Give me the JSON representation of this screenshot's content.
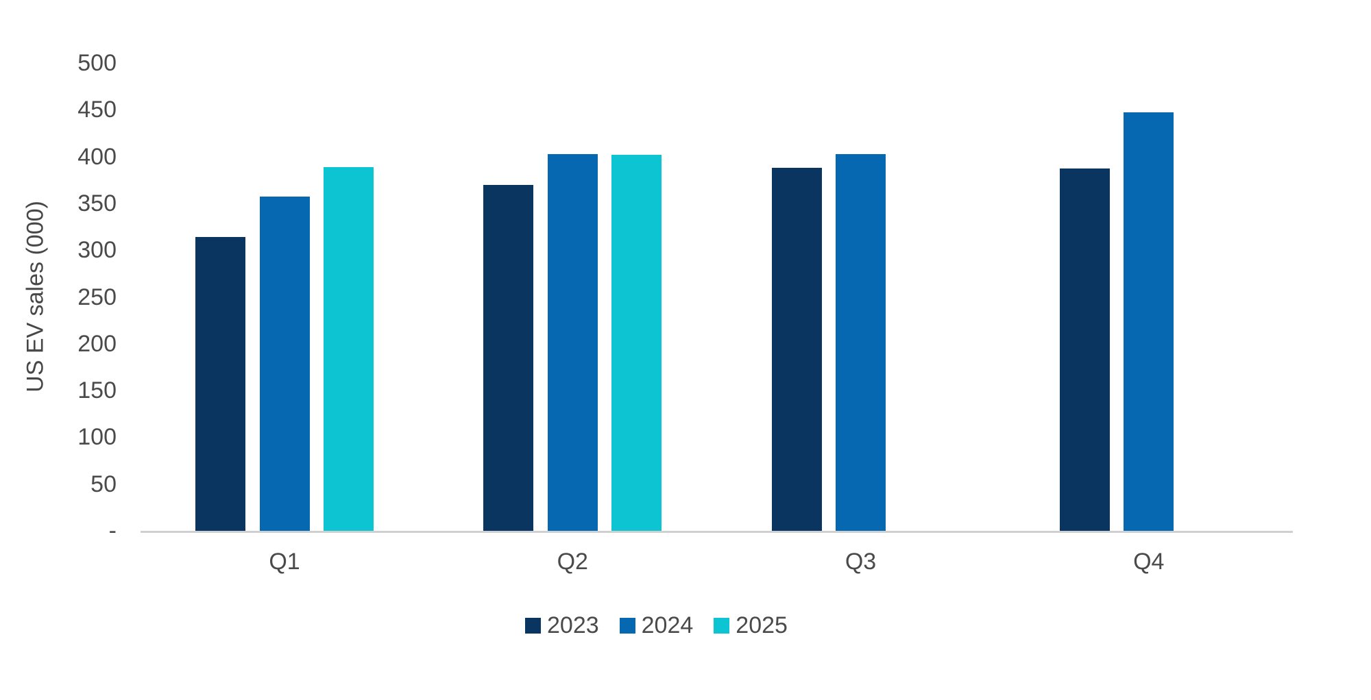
{
  "page": {
    "background": "#ffffff"
  },
  "chart_data": {
    "type": "bar",
    "title": "",
    "xlabel": "",
    "ylabel": "US EV sales (000)",
    "categories": [
      "Q1",
      "Q2",
      "Q3",
      "Q4"
    ],
    "series": [
      {
        "name": "2023",
        "color": "#0b3561",
        "values": [
          314,
          370,
          388,
          387
        ]
      },
      {
        "name": "2024",
        "color": "#0768b2",
        "values": [
          357,
          403,
          403,
          447
        ]
      },
      {
        "name": "2025",
        "color": "#0dc4d2",
        "values": [
          389,
          402,
          null,
          null
        ]
      }
    ],
    "ylim": [
      0,
      500
    ],
    "ytick_step": 50,
    "zero_tick_label": "-",
    "grid": false,
    "legend_position": "bottom",
    "axis_line_color": "#d0d0d0",
    "text_color": "#4a4a4a"
  }
}
